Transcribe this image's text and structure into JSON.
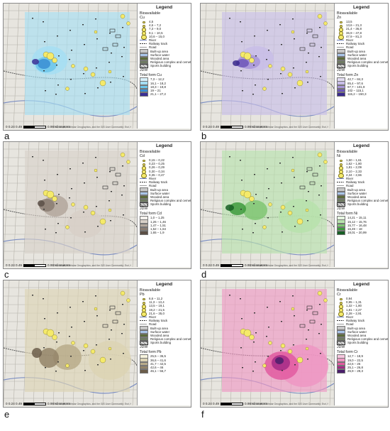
{
  "common": {
    "legend_title": "Legend",
    "bioavailable": "Bioavailable",
    "items": [
      "River",
      "Railway track",
      "Road",
      "Built-up area",
      "Surface water",
      "Wooded area",
      "Religious complex and cemetery",
      "Sports building"
    ],
    "jdw": "JDW",
    "scale_label": "0  0.24 0.49",
    "scale_unit": "0.98 Kilometers",
    "credit": "Esri, Maxar, Earthstar Geographics, and the GIS User Community; Esri, HERE, Garmin, Foursquare, Esri Geographics Inc, METI/NASA, USGS"
  },
  "panels": [
    {
      "id": "a",
      "label": "a",
      "element": "Cu",
      "total_title": "Total form Cu",
      "bio_classes": [
        "4,5",
        "4,6 – 7,2",
        "7,3 – 9,0",
        "9,1 – 10,5",
        "10,6 – 15,0"
      ],
      "total_classes": [
        "7,3 – 12,2",
        "16,1 – 18,2",
        "18,3 – 19,8",
        "19 – 21",
        "21,1 – 27,2"
      ],
      "colors": [
        "#d9f1fb",
        "#a6def3",
        "#6cc6ea",
        "#3a8ed4",
        "#3b2f95"
      ],
      "base": "#5cc3e8"
    },
    {
      "id": "b",
      "label": "b",
      "element": "Zn",
      "total_title": "Total form Zn",
      "bio_classes": [
        "13,5",
        "13,6 – 21,3",
        "21,4 – 36,8",
        "36,9 – 47,8",
        "47,9 – 81,3"
      ],
      "total_classes": [
        "42,7 – 84,3",
        "85,4 – 97,6",
        "97,7 – 101,9",
        "102 – 115,1",
        "115,2 – 150,3"
      ],
      "colors": [
        "#e4def3",
        "#c8bde8",
        "#a895d8",
        "#6d57b8",
        "#3a2a8c"
      ],
      "base": "#c6bde6"
    },
    {
      "id": "c",
      "label": "c",
      "element": "Cd",
      "total_title": "Total form Cd",
      "bio_classes": [
        "0,15 – 0,22",
        "0,23 – 0,25",
        "0,26 – 0,29",
        "0,30 – 0,34",
        "0,35 – 0,47"
      ],
      "total_classes": [
        "1,0 – 1,25",
        "1,26 – 1,46",
        "1,47 – 1,51",
        "1,52 – 1,64",
        "1,65 – 1,9"
      ],
      "colors": [
        "#f4f1ed",
        "#d8d0c8",
        "#b3a79c",
        "#8a7d72",
        "#5b4f46"
      ],
      "base": "#9a8d82"
    },
    {
      "id": "d",
      "label": "d",
      "element": "Ni",
      "total_title": "Total form Ni",
      "bio_classes": [
        "1,50 – 1,61",
        "1,62 – 1,80",
        "1,81 – 2,09",
        "2,10 – 2,33",
        "2,34 – 2,66"
      ],
      "total_classes": [
        "14,21 – 15,11",
        "15,12 – 15,76",
        "15,77 – 16,48",
        "16,49 – 18",
        "18,01 – 20,99"
      ],
      "colors": [
        "#e5f5e0",
        "#b7e2ac",
        "#7fc672",
        "#3d9a3c",
        "#175f25"
      ],
      "base": "#54b050"
    },
    {
      "id": "e",
      "label": "e",
      "element": "Pb",
      "total_title": "Total form Pb",
      "bio_classes": [
        "6,6 – 11,2",
        "11,3 – 13,4",
        "13,5 – 19,1",
        "19,2 – 21,5",
        "21,6 – 35,0"
      ],
      "total_classes": [
        "25,5 – 36,5",
        "36,6 – 41,6",
        "41,7 – 42,5",
        "42,6 – 46",
        "46,1 – 56,7"
      ],
      "colors": [
        "#f6f3de",
        "#dcd3b4",
        "#b8ab8b",
        "#938468",
        "#6b5d4a"
      ],
      "base": "#c9bd9a"
    },
    {
      "id": "f",
      "label": "f",
      "element": "Cr",
      "total_title": "Total form Cr",
      "bio_classes": [
        "0,94",
        "0,95 – 1,31",
        "1,32 – 1,80",
        "1,81 – 2,27",
        "2,28 – 2,91"
      ],
      "total_classes": [
        "12,7 – 18,9",
        "19,0 – 22,5",
        "22,6 – 25",
        "25,1 – 26,8",
        "26,9 – 29,3"
      ],
      "colors": [
        "#f5c7de",
        "#ef97c3",
        "#e25aa0",
        "#a42a86",
        "#4a1e6a"
      ],
      "base": "#e460a5"
    }
  ]
}
